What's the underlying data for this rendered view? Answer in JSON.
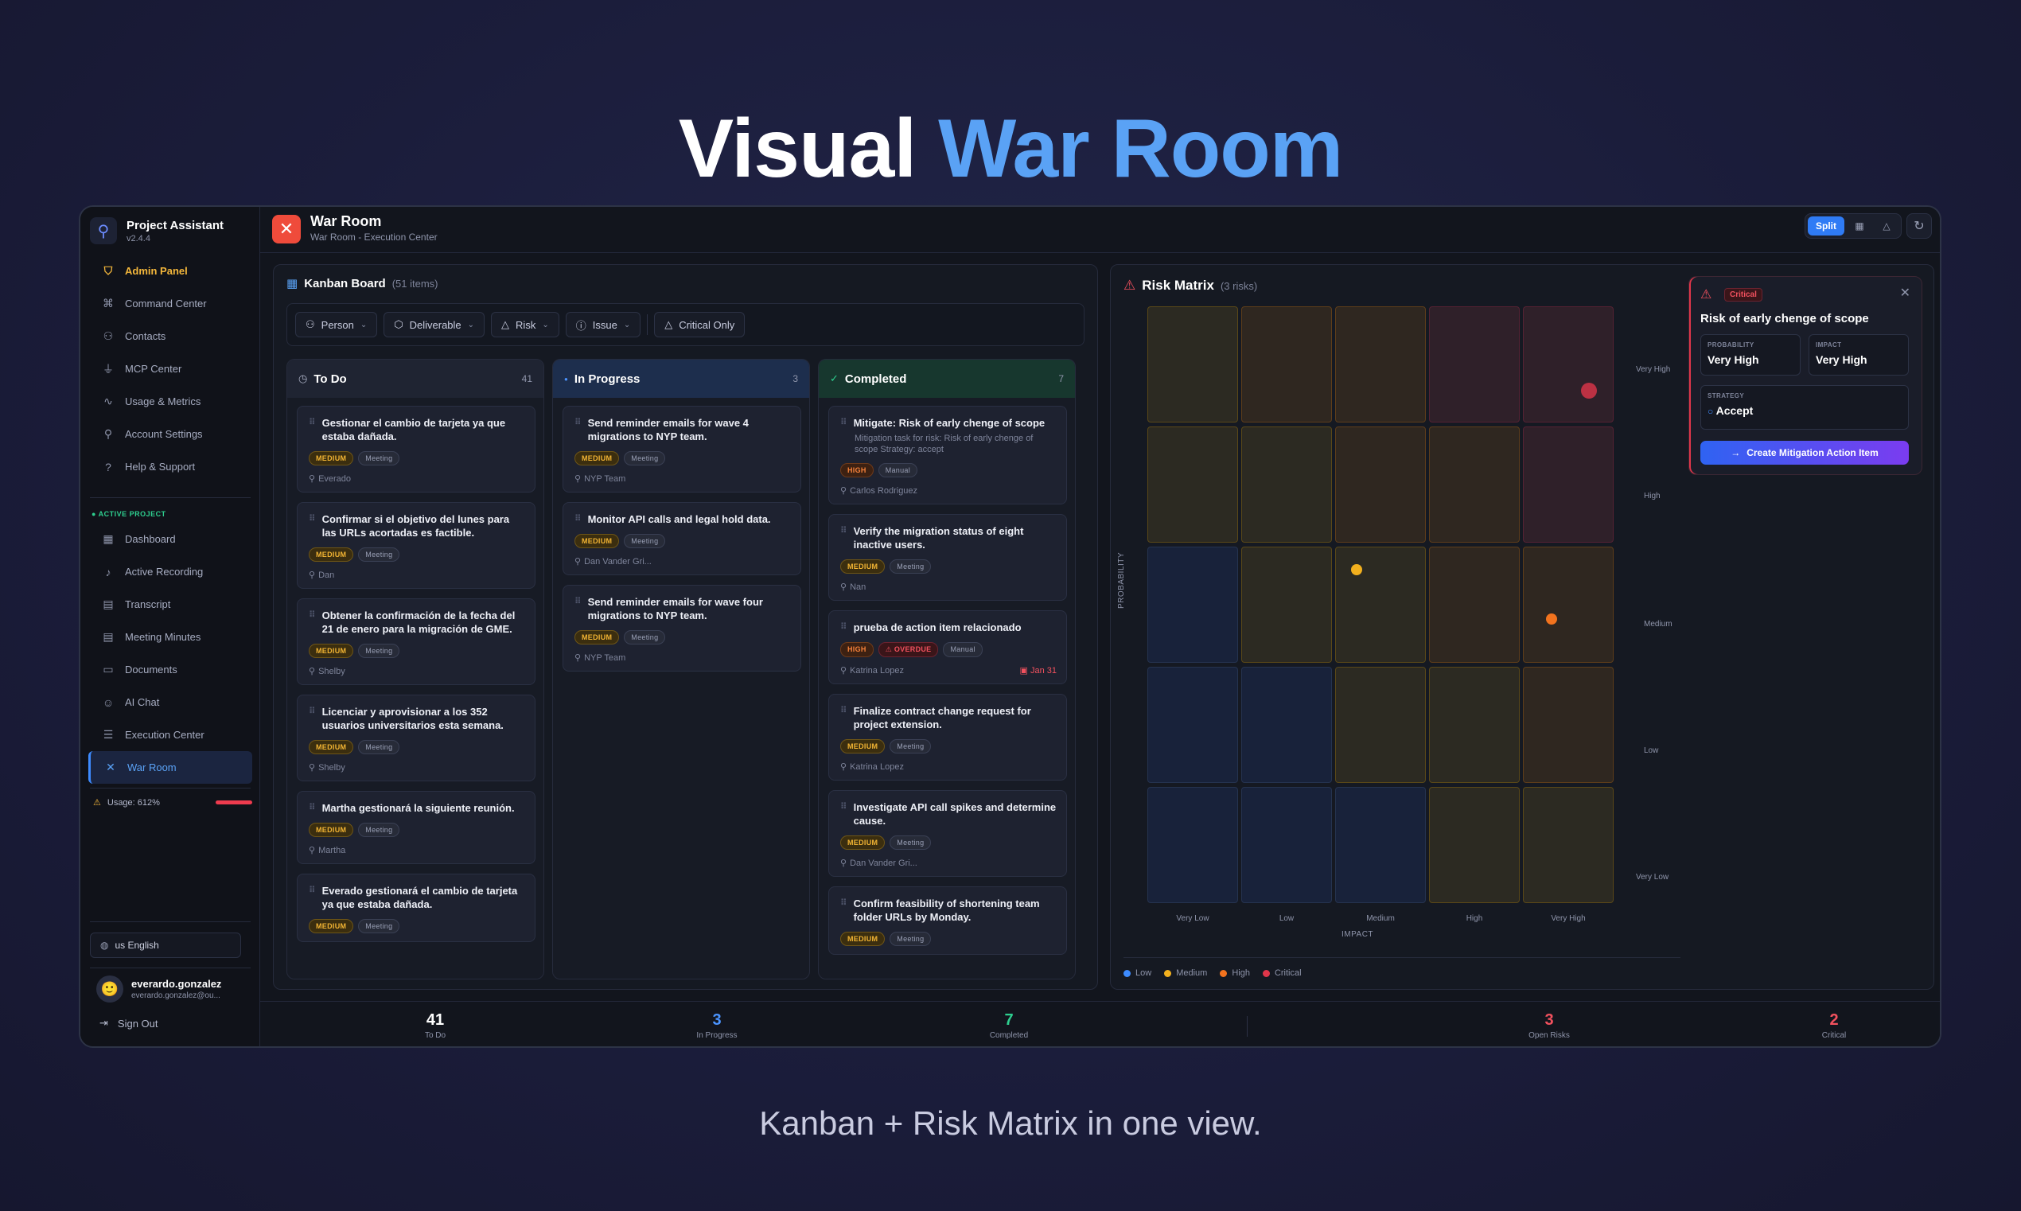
{
  "hero": {
    "title_white": "Visual",
    "title_accent": "War Room"
  },
  "tagline": "Kanban + Risk Matrix in one view.",
  "sidebar": {
    "app_name": "Project Assistant",
    "version": "v2.4.4",
    "items": [
      {
        "label": "Admin Panel",
        "icon": "shield-icon"
      },
      {
        "label": "Command Center",
        "icon": "command-icon"
      },
      {
        "label": "Contacts",
        "icon": "users-icon"
      },
      {
        "label": "MCP Center",
        "icon": "plug-icon"
      },
      {
        "label": "Usage & Metrics",
        "icon": "activity-icon"
      },
      {
        "label": "Account Settings",
        "icon": "user-icon"
      },
      {
        "label": "Help & Support",
        "icon": "help-icon"
      }
    ],
    "section_label": "ACTIVE PROJECT",
    "project_items": [
      {
        "label": "Dashboard",
        "icon": "grid-icon"
      },
      {
        "label": "Active Recording",
        "icon": "mic-icon"
      },
      {
        "label": "Transcript",
        "icon": "file-icon"
      },
      {
        "label": "Meeting Minutes",
        "icon": "file-text-icon"
      },
      {
        "label": "Documents",
        "icon": "folder-icon"
      },
      {
        "label": "AI Chat",
        "icon": "bot-icon"
      },
      {
        "label": "Execution Center",
        "icon": "list-icon"
      },
      {
        "label": "War Room",
        "icon": "swords-icon"
      }
    ],
    "usage": "Usage: 612%",
    "language": "us English",
    "user_name": "everardo.gonzalez",
    "user_email": "everardo.gonzalez@ou...",
    "sign_out": "Sign Out"
  },
  "topbar": {
    "title": "War Room",
    "subtitle": "War Room - Execution Center",
    "view_split": "Split"
  },
  "kanban": {
    "title": "Kanban Board",
    "count": "(51 items)",
    "filters": [
      {
        "label": "Person",
        "icon": "users-icon"
      },
      {
        "label": "Deliverable",
        "icon": "package-icon"
      },
      {
        "label": "Risk",
        "icon": "warning-icon"
      },
      {
        "label": "Issue",
        "icon": "info-icon"
      }
    ],
    "critical_only": "Critical Only",
    "columns": [
      {
        "title": "To Do",
        "count": "41",
        "cards": [
          {
            "title": "Gestionar el cambio de tarjeta ya que estaba dañada.",
            "tags": [
              "MEDIUM",
              "Meeting"
            ],
            "owner": "Everado"
          },
          {
            "title": "Confirmar si el objetivo del lunes para las URLs acortadas es factible.",
            "tags": [
              "MEDIUM",
              "Meeting"
            ],
            "owner": "Dan"
          },
          {
            "title": "Obtener la confirmación de la fecha del 21 de enero para la migración de GME.",
            "tags": [
              "MEDIUM",
              "Meeting"
            ],
            "owner": "Shelby"
          },
          {
            "title": "Licenciar y aprovisionar a los 352 usuarios universitarios esta semana.",
            "tags": [
              "MEDIUM",
              "Meeting"
            ],
            "owner": "Shelby"
          },
          {
            "title": "Martha gestionará la siguiente reunión.",
            "tags": [
              "MEDIUM",
              "Meeting"
            ],
            "owner": "Martha"
          },
          {
            "title": "Everado gestionará el cambio de tarjeta ya que estaba dañada.",
            "tags": [
              "MEDIUM",
              "Meeting"
            ],
            "owner": ""
          }
        ]
      },
      {
        "title": "In Progress",
        "count": "3",
        "cards": [
          {
            "title": "Send reminder emails for wave 4 migrations to NYP team.",
            "tags": [
              "MEDIUM",
              "Meeting"
            ],
            "owner": "NYP Team"
          },
          {
            "title": "Monitor API calls and legal hold data.",
            "tags": [
              "MEDIUM",
              "Meeting"
            ],
            "owner": "Dan Vander Gri..."
          },
          {
            "title": "Send reminder emails for wave four migrations to NYP team.",
            "tags": [
              "MEDIUM",
              "Meeting"
            ],
            "owner": "NYP Team"
          }
        ]
      },
      {
        "title": "Completed",
        "count": "7",
        "cards": [
          {
            "title": "Mitigate: Risk of early chenge of scope",
            "desc": "Mitigation task for risk: Risk of early chenge of scope Strategy: accept",
            "tags": [
              "HIGH",
              "Manual"
            ],
            "owner": "Carlos Rodriguez"
          },
          {
            "title": "Verify the migration status of eight inactive users.",
            "tags": [
              "MEDIUM",
              "Meeting"
            ],
            "owner": "Nan"
          },
          {
            "title": "prueba de action item relacionado",
            "tags": [
              "HIGH",
              "OVERDUE",
              "Manual"
            ],
            "owner": "Katrina Lopez",
            "due": "Jan 31"
          },
          {
            "title": "Finalize contract change request for project extension.",
            "tags": [
              "MEDIUM",
              "Meeting"
            ],
            "owner": "Katrina Lopez"
          },
          {
            "title": "Investigate API call spikes and determine cause.",
            "tags": [
              "MEDIUM",
              "Meeting"
            ],
            "owner": "Dan Vander Gri..."
          },
          {
            "title": "Confirm feasibility of shortening team folder URLs by Monday.",
            "tags": [
              "MEDIUM",
              "Meeting"
            ],
            "owner": ""
          }
        ]
      }
    ]
  },
  "risk_matrix": {
    "title": "Risk Matrix",
    "count": "(3 risks)",
    "y_axis": "PROBABILITY",
    "x_axis": "IMPACT",
    "y_levels": [
      "Very High",
      "High",
      "Medium",
      "Low",
      "Very Low"
    ],
    "x_levels": [
      "Very Low",
      "Low",
      "Medium",
      "High",
      "Very High"
    ],
    "cell_levels": [
      [
        "medium",
        "high",
        "high",
        "critical",
        "critical"
      ],
      [
        "medium",
        "medium",
        "high",
        "high",
        "critical"
      ],
      [
        "low",
        "medium",
        "medium",
        "high",
        "high"
      ],
      [
        "low",
        "low",
        "medium",
        "medium",
        "high"
      ],
      [
        "low",
        "low",
        "low",
        "medium",
        "medium"
      ]
    ],
    "risks": [
      {
        "impact": "Very High",
        "probability": "Very High",
        "severity": "critical",
        "color": "#e0364a"
      },
      {
        "impact": "Medium",
        "probability": "Medium",
        "severity": "medium",
        "color": "#f2b01e"
      },
      {
        "impact": "Very High",
        "probability": "Medium",
        "severity": "high",
        "color": "#f2731e"
      }
    ],
    "legend": [
      {
        "label": "Low",
        "color": "#3d8bff"
      },
      {
        "label": "Medium",
        "color": "#f2b01e"
      },
      {
        "label": "High",
        "color": "#f2731e"
      },
      {
        "label": "Critical",
        "color": "#e0364a"
      }
    ],
    "popup": {
      "badge": "Critical",
      "title": "Risk of early chenge of scope",
      "probability_label": "PROBABILITY",
      "probability": "Very High",
      "impact_label": "IMPACT",
      "impact": "Very High",
      "strategy_label": "STRATEGY",
      "strategy": "Accept",
      "button": "Create Mitigation Action Item"
    }
  },
  "stats": [
    {
      "value": "41",
      "label": "To Do",
      "color": "#ffffff"
    },
    {
      "value": "3",
      "label": "In Progress",
      "color": "#4b94ff"
    },
    {
      "value": "7",
      "label": "Completed",
      "color": "#2ecf8f"
    },
    {
      "value": "3",
      "label": "Open Risks",
      "color": "#f2515e"
    },
    {
      "value": "2",
      "label": "Critical",
      "color": "#f2515e"
    }
  ]
}
